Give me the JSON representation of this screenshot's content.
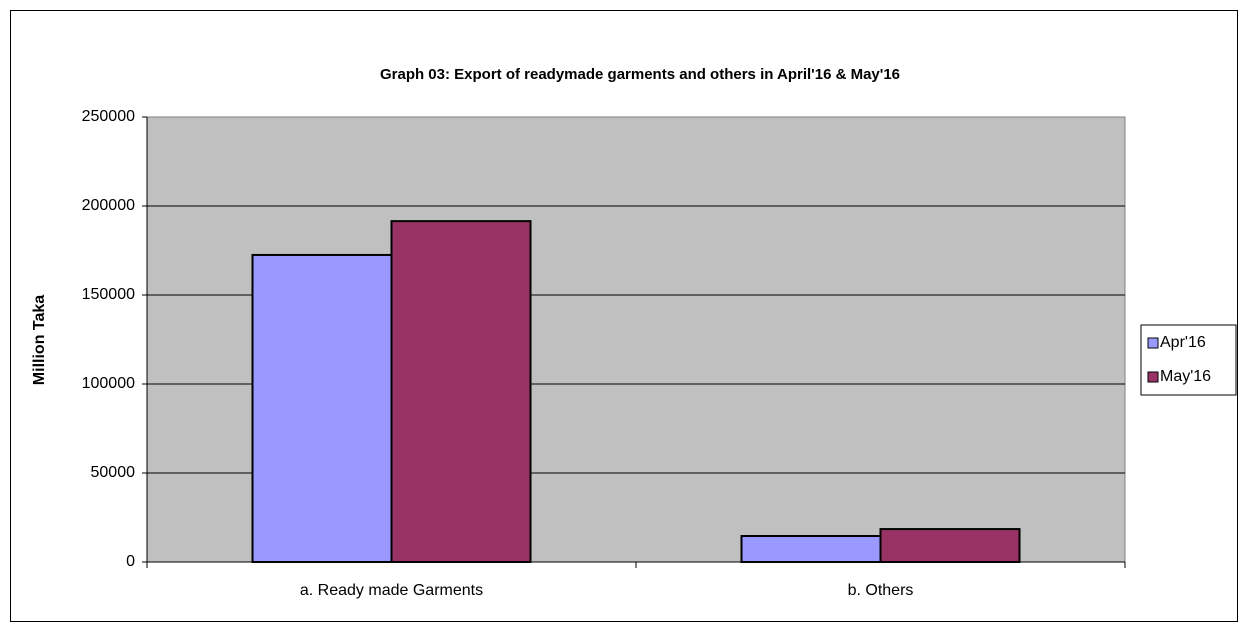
{
  "chart_data": {
    "type": "bar",
    "title": "Graph 03: Export of readymade garments and others in April'16 & May'16",
    "ylabel": "Million Taka",
    "categories": [
      "a. Ready made Garments",
      "b. Others"
    ],
    "series": [
      {
        "name": "Apr'16",
        "color": "#9999ff",
        "values": [
          172500,
          14600
        ]
      },
      {
        "name": "May'16",
        "color": "#993366",
        "values": [
          191500,
          18500
        ]
      }
    ],
    "ylim": [
      0,
      250000
    ],
    "yticks": [
      0,
      50000,
      100000,
      150000,
      200000,
      250000
    ],
    "grid": true,
    "legend": "right"
  }
}
